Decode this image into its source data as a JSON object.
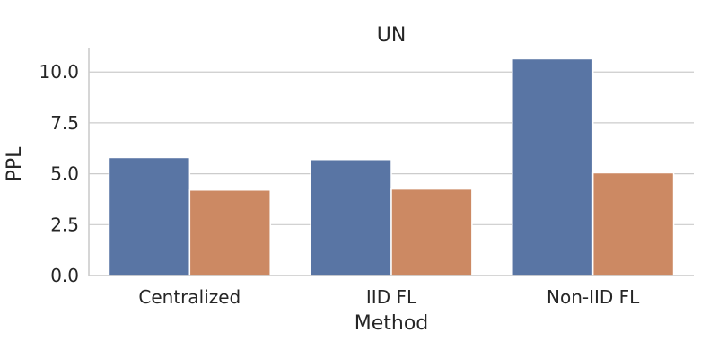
{
  "chart_data": {
    "type": "bar",
    "title": "UN",
    "xlabel": "Method",
    "ylabel": "PPL",
    "categories": [
      "Centralized",
      "IID FL",
      "Non-IID FL"
    ],
    "series": [
      {
        "values": [
          5.8,
          5.7,
          10.65
        ],
        "color": "#5975a4"
      },
      {
        "values": [
          4.2,
          4.25,
          5.05
        ],
        "color": "#cc8963"
      }
    ],
    "yticks": [
      "0.0",
      "2.5",
      "5.0",
      "7.5",
      "10.0"
    ],
    "ylim": [
      0,
      11.2
    ],
    "grid": "horizontal",
    "legend": "none"
  }
}
